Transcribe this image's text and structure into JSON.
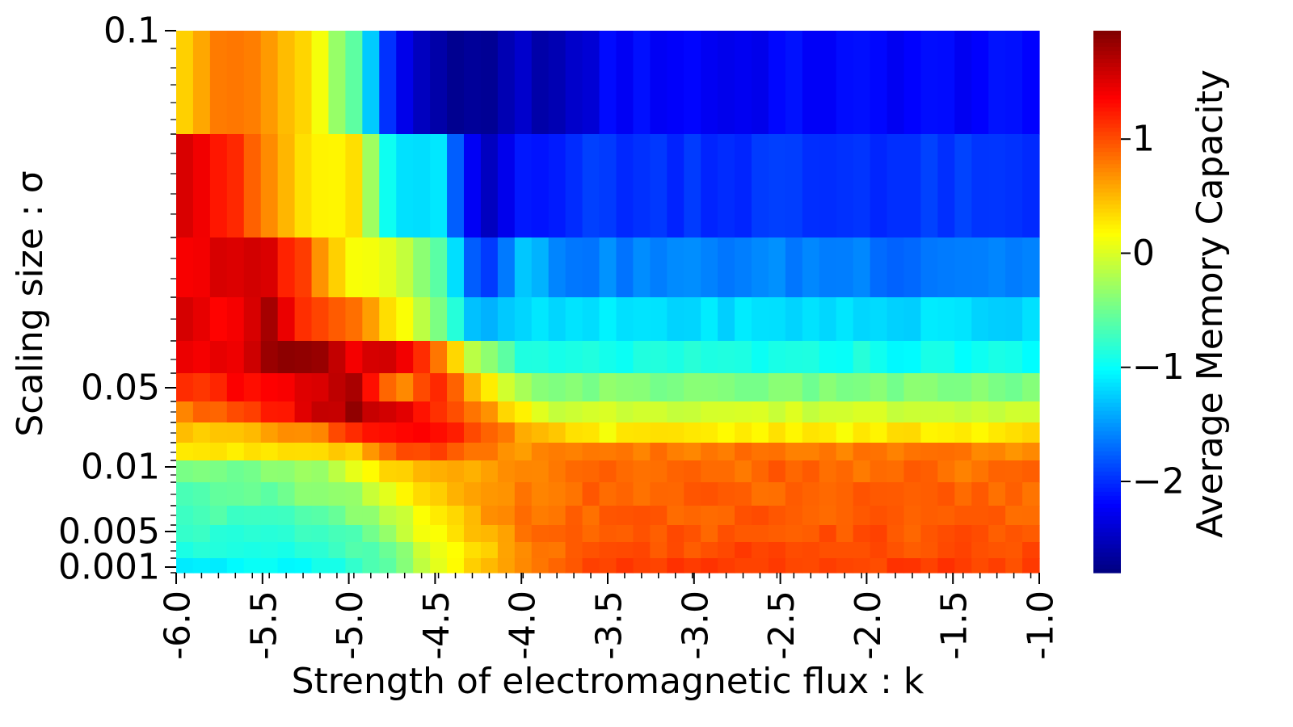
{
  "chart_data": {
    "type": "heatmap",
    "xlabel": "Strength of electromagnetic flux : k",
    "ylabel": "Scaling size : σ",
    "x_ticks": [
      {
        "value": -6.0,
        "label": "-6.0"
      },
      {
        "value": -5.5,
        "label": "-5.5"
      },
      {
        "value": -5.0,
        "label": "-5.0"
      },
      {
        "value": -4.5,
        "label": "-4.5"
      },
      {
        "value": -4.0,
        "label": "-4.0"
      },
      {
        "value": -3.5,
        "label": "-3.5"
      },
      {
        "value": -3.0,
        "label": "-3.0"
      },
      {
        "value": -2.5,
        "label": "-2.5"
      },
      {
        "value": -2.0,
        "label": "-2.0"
      },
      {
        "value": -1.5,
        "label": "-1.5"
      },
      {
        "value": -1.0,
        "label": "-1.0"
      }
    ],
    "x_range": [
      -6.0,
      -1.0
    ],
    "x_columns": 51,
    "y_ticks": [
      {
        "label": "0.1"
      },
      {
        "label": "0.05"
      },
      {
        "label": "0.01"
      },
      {
        "label": "0.005"
      },
      {
        "label": "0.001"
      }
    ],
    "colorbar": {
      "label": "Average Memory Capacity",
      "range": [
        -2.8,
        1.95
      ],
      "ticks": [
        {
          "value": 1,
          "label": "1"
        },
        {
          "value": 0,
          "label": "0"
        },
        {
          "value": -1,
          "label": "−1"
        },
        {
          "value": -2,
          "label": "−2"
        }
      ],
      "colormap": "jet"
    },
    "rows": [
      {
        "sigma_index": 0,
        "anchors": [
          0.35,
          0.9,
          0.6,
          0.3,
          -0.6,
          -2.3,
          -2.6,
          -2.8,
          -2.5,
          -2.6,
          -2.2,
          -2.2,
          -2.2,
          -2.3,
          -2.2,
          -2.2,
          -2.2,
          -2.2,
          -2.2,
          -2.2,
          -2.2
        ]
      },
      {
        "sigma_index": 1,
        "anchors": [
          1.6,
          1.2,
          0.7,
          0.2,
          0.25,
          -1.2,
          -1.2,
          -2.6,
          -2.1,
          -2.0,
          -1.95,
          -2.0,
          -1.95,
          -2.0,
          -1.95,
          -2.0,
          -1.95,
          -2.0,
          -1.95,
          -2.0,
          -2.0
        ]
      },
      {
        "sigma_index": 2,
        "anchors": [
          1.4,
          1.5,
          1.5,
          0.9,
          0.1,
          0.1,
          -0.6,
          -2.0,
          -1.3,
          -1.6,
          -1.6,
          -1.6,
          -1.6,
          -1.6,
          -1.6,
          -1.6,
          -1.6,
          -1.7,
          -1.6,
          -1.6,
          -1.6
        ]
      },
      {
        "sigma_index": 3,
        "anchors": [
          1.5,
          1.4,
          1.7,
          1.1,
          0.8,
          0.3,
          -0.4,
          -1.5,
          -1.2,
          -1.2,
          -1.15,
          -1.15,
          -1.2,
          -1.15,
          -1.2,
          -1.15,
          -1.2,
          -1.2,
          -1.15,
          -1.2,
          -1.2
        ]
      },
      {
        "sigma_index": 4,
        "anchors": [
          1.5,
          1.4,
          1.8,
          1.85,
          1.4,
          1.6,
          0.8,
          -0.3,
          -0.9,
          -0.95,
          -0.9,
          -0.95,
          -0.9,
          -0.9,
          -0.95,
          -0.95,
          -0.9,
          -1.0,
          -0.95,
          -0.95,
          -1.0
        ]
      },
      {
        "sigma_index": 5,
        "anchors": [
          1.1,
          1.3,
          1.4,
          1.5,
          1.7,
          0.6,
          1.2,
          0.3,
          -0.3,
          -0.4,
          -0.4,
          -0.45,
          -0.4,
          -0.4,
          -0.45,
          -0.45,
          -0.4,
          -0.45,
          -0.4,
          -0.45,
          -0.45
        ]
      },
      {
        "sigma_index": 6,
        "anchors": [
          0.8,
          0.9,
          1.2,
          1.5,
          1.8,
          1.5,
          1.1,
          0.7,
          0.2,
          -0.1,
          -0.05,
          0.0,
          -0.05,
          0.0,
          -0.05,
          -0.05,
          0.0,
          -0.05,
          0.0,
          -0.1,
          -0.1
        ]
      },
      {
        "sigma_index": 7,
        "anchors": [
          0.4,
          0.5,
          0.6,
          0.7,
          1.2,
          1.4,
          1.3,
          0.9,
          0.6,
          0.3,
          0.2,
          0.25,
          0.3,
          0.2,
          0.3,
          0.25,
          0.2,
          0.3,
          0.25,
          0.2,
          0.3
        ]
      },
      {
        "sigma_index": 8,
        "anchors": [
          0.3,
          0.3,
          0.3,
          0.35,
          0.4,
          0.9,
          1.1,
          0.8,
          0.7,
          0.75,
          0.8,
          0.8,
          0.75,
          0.8,
          0.8,
          0.75,
          0.8,
          0.75,
          0.8,
          0.7,
          0.75
        ]
      },
      {
        "sigma_index": 9,
        "anchors": [
          -0.5,
          -0.5,
          -0.4,
          -0.3,
          0.0,
          0.4,
          0.5,
          0.6,
          0.7,
          0.85,
          0.85,
          0.9,
          0.85,
          0.8,
          0.9,
          0.85,
          0.85,
          0.9,
          0.8,
          0.85,
          0.85
        ]
      },
      {
        "sigma_index": 10,
        "anchors": [
          -0.6,
          -0.6,
          -0.6,
          -0.4,
          -0.3,
          0.1,
          0.4,
          0.6,
          0.8,
          0.85,
          0.9,
          0.85,
          0.9,
          0.9,
          0.85,
          0.9,
          0.9,
          0.85,
          0.9,
          0.9,
          0.85
        ]
      },
      {
        "sigma_index": 11,
        "anchors": [
          -0.7,
          -0.7,
          -0.7,
          -0.6,
          -0.4,
          -0.1,
          0.3,
          0.6,
          0.8,
          0.9,
          0.9,
          0.95,
          0.9,
          0.9,
          0.95,
          0.9,
          0.9,
          0.95,
          0.9,
          0.9,
          0.9
        ]
      },
      {
        "sigma_index": 12,
        "anchors": [
          -0.8,
          -0.85,
          -0.8,
          -0.7,
          -0.6,
          -0.2,
          0.2,
          0.5,
          0.8,
          0.9,
          0.95,
          1.0,
          0.95,
          0.95,
          1.0,
          0.95,
          1.0,
          0.95,
          0.95,
          1.0,
          0.95
        ]
      },
      {
        "sigma_index": 13,
        "anchors": [
          -0.9,
          -0.9,
          -0.9,
          -0.8,
          -0.7,
          -0.4,
          0.1,
          0.4,
          0.7,
          0.9,
          1.0,
          1.0,
          1.0,
          1.05,
          1.0,
          1.0,
          1.05,
          1.0,
          1.0,
          1.0,
          1.0
        ]
      },
      {
        "sigma_index": 14,
        "anchors": [
          -1.05,
          -1.05,
          -1.0,
          -0.95,
          -0.8,
          -0.5,
          0.0,
          0.4,
          0.7,
          0.95,
          1.05,
          1.05,
          1.1,
          1.05,
          1.05,
          1.1,
          1.05,
          1.05,
          1.1,
          1.05,
          1.05
        ]
      }
    ]
  }
}
